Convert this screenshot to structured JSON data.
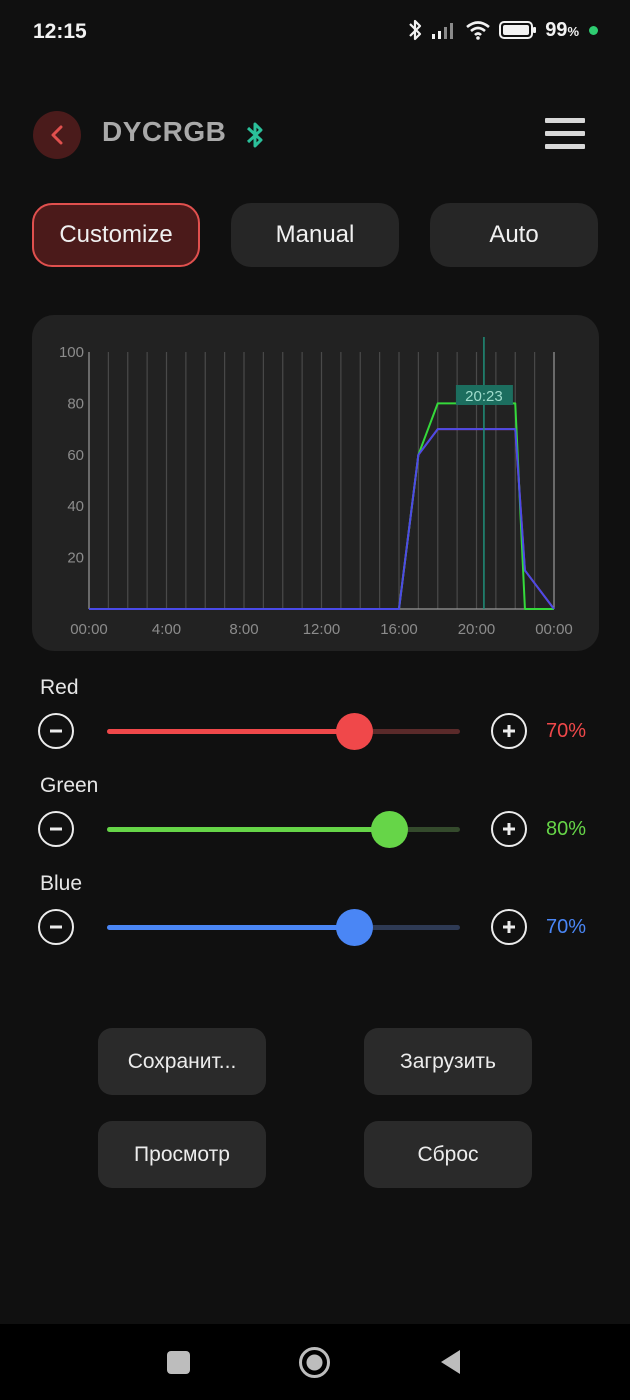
{
  "status_bar": {
    "time": "12:15",
    "battery_value": "99",
    "battery_unit": "%",
    "icons": [
      "bluetooth-icon",
      "signal-icon",
      "wifi-icon",
      "battery-icon"
    ],
    "dot_color": "#2ecc71"
  },
  "header": {
    "title": "DYCRGB",
    "back_icon": "chevron-left-icon",
    "bluetooth_icon": "bluetooth-icon",
    "menu_icon": "hamburger-menu-icon"
  },
  "tabs": [
    {
      "label": "Customize",
      "active": true
    },
    {
      "label": "Manual",
      "active": false
    },
    {
      "label": "Auto",
      "active": false
    }
  ],
  "chart_data": {
    "type": "line",
    "x_ticks": [
      "00:00",
      "4:00",
      "8:00",
      "12:00",
      "16:00",
      "20:00",
      "00:00"
    ],
    "y_ticks": [
      "100",
      "80",
      "60",
      "40",
      "20"
    ],
    "ylim": [
      0,
      100
    ],
    "xlim_hours": [
      0,
      24
    ],
    "cursor_label": "20:23",
    "cursor_hour": 20.383,
    "grid": true,
    "series": [
      {
        "color": "#e23b3b",
        "x": [
          0,
          16,
          17,
          18,
          22,
          22.5,
          24
        ],
        "y": [
          0,
          0,
          60,
          70,
          70,
          15,
          0
        ]
      },
      {
        "color": "#35d93b",
        "x": [
          0,
          16,
          17,
          18,
          22,
          22.5,
          24
        ],
        "y": [
          0,
          0,
          60,
          80,
          80,
          0,
          0
        ]
      },
      {
        "color": "#4a4ae8",
        "x": [
          0,
          16,
          17,
          18,
          22,
          22.5,
          24
        ],
        "y": [
          0,
          0,
          60,
          70,
          70,
          15,
          0
        ]
      }
    ]
  },
  "channels": [
    {
      "label": "Red",
      "percent": "70%",
      "value": 0.7,
      "color": "#f0484a",
      "track": "#5a2a2a"
    },
    {
      "label": "Green",
      "percent": "80%",
      "value": 0.8,
      "color": "#66d548",
      "track": "#344a2c"
    },
    {
      "label": "Blue",
      "percent": "70%",
      "value": 0.7,
      "color": "#4a86f5",
      "track": "#2e3a54"
    }
  ],
  "buttons": {
    "save": "Сохранит...",
    "load": "Загрузить",
    "preview": "Просмотр",
    "reset": "Сброс"
  },
  "nav": {
    "icons": [
      "recents-square-icon",
      "home-circle-icon",
      "back-triangle-icon"
    ]
  }
}
